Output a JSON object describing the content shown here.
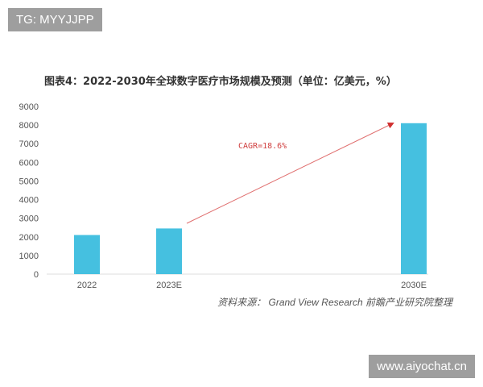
{
  "watermark_top": "TG: MYYJJPP",
  "watermark_bottom": "www.aiyochat.cn",
  "chart_data": {
    "type": "bar",
    "title": "图表4：2022-2030年全球数字医疗市场规模及预测（单位：亿美元，%）",
    "categories": [
      "2022",
      "2023E",
      "2030E"
    ],
    "values": [
      2100,
      2450,
      8100
    ],
    "ylim": [
      0,
      9000
    ],
    "yticks": [
      "0",
      "1000",
      "2000",
      "3000",
      "4000",
      "5000",
      "6000",
      "7000",
      "8000",
      "9000"
    ],
    "grid": false,
    "bar_color": "#45c0e0",
    "annotation": {
      "text": "CAGR=18.6%",
      "color": "#d04040"
    },
    "source": "资料来源： Grand View Research 前瞻产业研究院整理"
  }
}
